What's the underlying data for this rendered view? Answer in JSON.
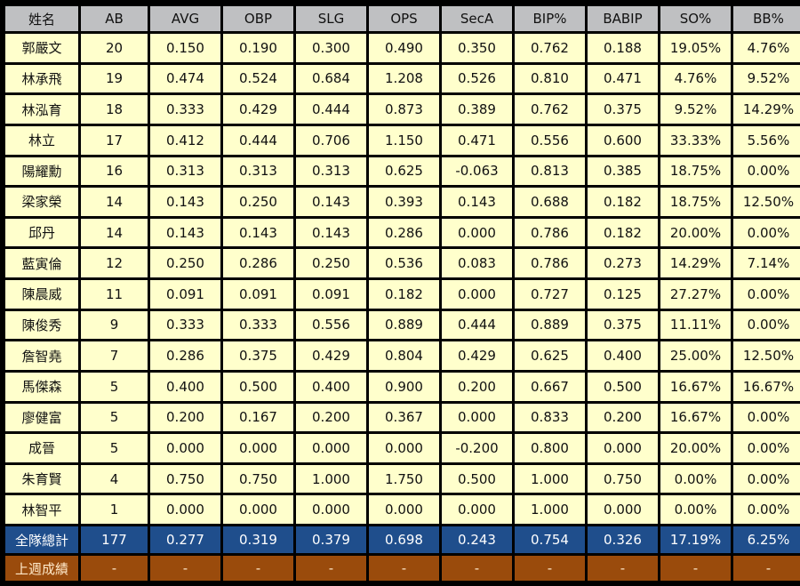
{
  "headers": [
    "姓名",
    "AB",
    "AVG",
    "OBP",
    "SLG",
    "OPS",
    "SecA",
    "BIP%",
    "BABIP",
    "SO%",
    "BB%"
  ],
  "players": [
    [
      "郭嚴文",
      "20",
      "0.150",
      "0.190",
      "0.300",
      "0.490",
      "0.350",
      "0.762",
      "0.188",
      "19.05%",
      "4.76%"
    ],
    [
      "林承飛",
      "19",
      "0.474",
      "0.524",
      "0.684",
      "1.208",
      "0.526",
      "0.810",
      "0.471",
      "4.76%",
      "9.52%"
    ],
    [
      "林泓育",
      "18",
      "0.333",
      "0.429",
      "0.444",
      "0.873",
      "0.389",
      "0.762",
      "0.375",
      "9.52%",
      "14.29%"
    ],
    [
      "林立",
      "17",
      "0.412",
      "0.444",
      "0.706",
      "1.150",
      "0.471",
      "0.556",
      "0.600",
      "33.33%",
      "5.56%"
    ],
    [
      "陽耀勳",
      "16",
      "0.313",
      "0.313",
      "0.313",
      "0.625",
      "-0.063",
      "0.813",
      "0.385",
      "18.75%",
      "0.00%"
    ],
    [
      "梁家榮",
      "14",
      "0.143",
      "0.250",
      "0.143",
      "0.393",
      "0.143",
      "0.688",
      "0.182",
      "18.75%",
      "12.50%"
    ],
    [
      "邱丹",
      "14",
      "0.143",
      "0.143",
      "0.143",
      "0.286",
      "0.000",
      "0.786",
      "0.182",
      "20.00%",
      "0.00%"
    ],
    [
      "藍寅倫",
      "12",
      "0.250",
      "0.286",
      "0.250",
      "0.536",
      "0.083",
      "0.786",
      "0.273",
      "14.29%",
      "7.14%"
    ],
    [
      "陳晨威",
      "11",
      "0.091",
      "0.091",
      "0.091",
      "0.182",
      "0.000",
      "0.727",
      "0.125",
      "27.27%",
      "0.00%"
    ],
    [
      "陳俊秀",
      "9",
      "0.333",
      "0.333",
      "0.556",
      "0.889",
      "0.444",
      "0.889",
      "0.375",
      "11.11%",
      "0.00%"
    ],
    [
      "詹智堯",
      "7",
      "0.286",
      "0.375",
      "0.429",
      "0.804",
      "0.429",
      "0.625",
      "0.400",
      "25.00%",
      "12.50%"
    ],
    [
      "馬傑森",
      "5",
      "0.400",
      "0.500",
      "0.400",
      "0.900",
      "0.200",
      "0.667",
      "0.500",
      "16.67%",
      "16.67%"
    ],
    [
      "廖健富",
      "5",
      "0.200",
      "0.167",
      "0.200",
      "0.367",
      "0.000",
      "0.833",
      "0.200",
      "16.67%",
      "0.00%"
    ],
    [
      "成晉",
      "5",
      "0.000",
      "0.000",
      "0.000",
      "0.000",
      "-0.200",
      "0.800",
      "0.000",
      "20.00%",
      "0.00%"
    ],
    [
      "朱育賢",
      "4",
      "0.750",
      "0.750",
      "1.000",
      "1.750",
      "0.500",
      "1.000",
      "0.750",
      "0.00%",
      "0.00%"
    ],
    [
      "林智平",
      "1",
      "0.000",
      "0.000",
      "0.000",
      "0.000",
      "0.000",
      "1.000",
      "0.000",
      "0.00%",
      "0.00%"
    ]
  ],
  "team_total": [
    "全隊總計",
    "177",
    "0.277",
    "0.319",
    "0.379",
    "0.698",
    "0.243",
    "0.754",
    "0.326",
    "17.19%",
    "6.25%"
  ],
  "last_week": [
    "上週成績",
    "-",
    "-",
    "-",
    "-",
    "-",
    "-",
    "-",
    "-",
    "-",
    "-"
  ],
  "colors": {
    "header_bg": "#bfc0c2",
    "row_bg": "#ffffcc",
    "total_bg": "#1f4e8c",
    "last_week_bg": "#9a4b0c"
  }
}
